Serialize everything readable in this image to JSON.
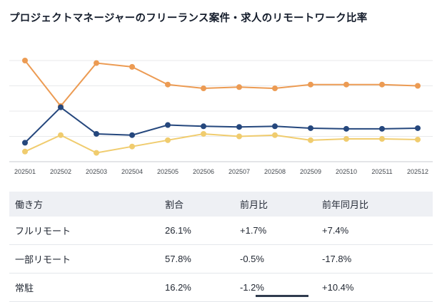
{
  "page": {
    "title": "プロジェクトマネージャーのフリーランス案件・求人のリモートワーク比率"
  },
  "chart_data": {
    "type": "line",
    "title": "",
    "xlabel": "",
    "ylabel": "",
    "categories": [
      "202501",
      "202502",
      "202503",
      "202504",
      "202505",
      "202506",
      "202507",
      "202508",
      "202509",
      "202510",
      "202511",
      "202512"
    ],
    "series": [
      {
        "name": "一部リモート",
        "color": "#ec9b53",
        "values": [
          80,
          44,
          78,
          75,
          61,
          58,
          59,
          58,
          61,
          61,
          61,
          60
        ]
      },
      {
        "name": "常駐",
        "color": "#f0cc6e",
        "values": [
          8,
          21,
          7,
          12,
          17,
          22,
          20,
          21,
          17,
          18,
          18,
          17.5
        ]
      },
      {
        "name": "フルリモート",
        "color": "#25477d",
        "values": [
          15,
          43,
          22,
          21,
          29,
          28,
          27.5,
          28,
          26.5,
          26,
          26,
          26.5
        ]
      }
    ],
    "ylim": [
      0,
      80
    ],
    "grid": true,
    "legend_position": "none",
    "grid_color": "#e8e9eb",
    "axis_color": "#c8cbd0",
    "tick_label_color": "#44494f"
  },
  "table": {
    "headers": [
      "働き方",
      "割合",
      "前月比",
      "前年同月比"
    ],
    "rows": [
      {
        "work_style": "フルリモート",
        "ratio": "26.1%",
        "mom": "+1.7%",
        "yoy": "+7.4%"
      },
      {
        "work_style": "一部リモート",
        "ratio": "57.8%",
        "mom": "-0.5%",
        "yoy": "-17.8%"
      },
      {
        "work_style": "常駐",
        "ratio": "16.2%",
        "mom": "-1.2%",
        "yoy": "+10.4%"
      }
    ]
  }
}
